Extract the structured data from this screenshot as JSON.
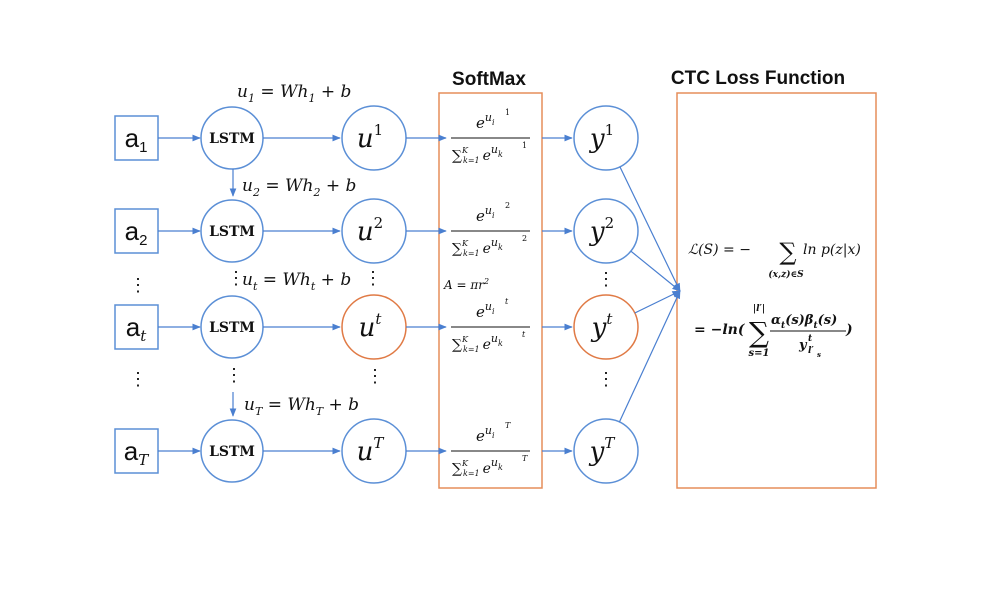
{
  "headers": {
    "softmax": "SoftMax",
    "ctc": "CTC Loss Function"
  },
  "inputs": [
    {
      "base": "a",
      "sub": "1"
    },
    {
      "base": "a",
      "sub": "2"
    },
    {
      "base": "a",
      "sub": "t"
    },
    {
      "base": "a",
      "sub": "T"
    }
  ],
  "lstm_label": "LSTM",
  "u_nodes": [
    {
      "base": "u",
      "sup": "1"
    },
    {
      "base": "u",
      "sup": "2"
    },
    {
      "base": "u",
      "sup": "t"
    },
    {
      "base": "u",
      "sup": "T"
    }
  ],
  "y_nodes": [
    {
      "base": "y",
      "sup": "1"
    },
    {
      "base": "y",
      "sup": "2"
    },
    {
      "base": "y",
      "sup": "t"
    },
    {
      "base": "y",
      "sup": "T"
    }
  ],
  "equations": [
    {
      "lhs": "u",
      "sub": "1",
      "mid": " = Wh",
      "sub2": "1",
      "rhs": " + b"
    },
    {
      "lhs": "u",
      "sub": "2",
      "mid": " = Wh",
      "sub2": "2",
      "rhs": " + b"
    },
    {
      "lhs": "u",
      "sub": "t",
      "mid": " = Wh",
      "sub2": "t",
      "rhs": " + b"
    },
    {
      "lhs": "u",
      "sub": "T",
      "mid": " = Wh",
      "sub2": "T",
      "rhs": " + b"
    }
  ],
  "softmax_terms": [
    "1",
    "2",
    "t",
    "T"
  ],
  "softmax_parts": {
    "numer_base": "e",
    "numer_u": "u",
    "numer_i": "i",
    "sum_sym": "∑",
    "sum_sub": "k=1",
    "sum_sup": "K",
    "denom_e": "e",
    "denom_u": "u",
    "denom_k": "k"
  },
  "area_note": "A = πr",
  "area_sup": "2",
  "ellipsis": "⋮",
  "loss_line1": {
    "lhs": "ℒ(S) = −",
    "sum": "∑",
    "sum_sub": "(x,z)∈S",
    "rhs": "ln p(z|x)"
  },
  "loss_line2": {
    "lhs": "= −ln(",
    "sum": "∑",
    "sum_sup": "|l′|",
    "sum_sub": "s=1",
    "numer": "α",
    "numer_t1": "t",
    "numer_mid": "(s)β",
    "numer_t2": "t",
    "numer_end": "(s)",
    "denom": "y",
    "denom_sup": "t",
    "denom_sub": "l′",
    "denom_subsub": "s",
    "close": ")"
  },
  "colors": {
    "node_stroke": "#5b8fd6",
    "highlight_stroke": "#e07a45",
    "arrow": "#4a7fd0",
    "box_stroke": "#e58d5a"
  }
}
